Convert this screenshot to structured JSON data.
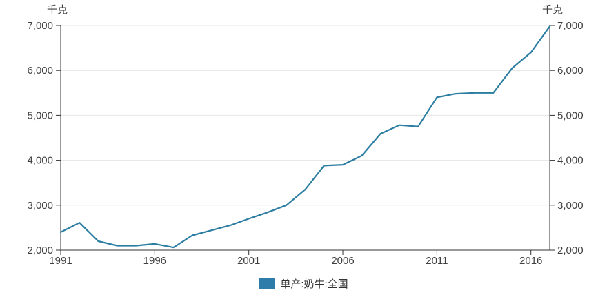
{
  "chart": {
    "unit_left": "千克",
    "unit_right": "千克",
    "legend": {
      "label": "单产:奶牛:全国",
      "swatch_color": "#2e7ca9"
    }
  },
  "chart_data": {
    "type": "line",
    "title": "",
    "xlabel": "",
    "ylabel": "千克",
    "xlim": [
      1991,
      2017
    ],
    "ylim": [
      2000,
      7000
    ],
    "grid": "horizontal",
    "legend_position": "bottom-center",
    "axis_color": "#333333",
    "grid_color": "#e4e4e4",
    "tick_text_color": "#404040",
    "x": [
      1991,
      1992,
      1993,
      1994,
      1995,
      1996,
      1997,
      1998,
      1999,
      2000,
      2001,
      2002,
      2003,
      2004,
      2005,
      2006,
      2007,
      2008,
      2009,
      2010,
      2011,
      2012,
      2013,
      2014,
      2015,
      2016,
      2017
    ],
    "series": [
      {
        "name": "单产:奶牛:全国",
        "color": "#2b7da1",
        "values": [
          2400,
          2610,
          2200,
          2100,
          2100,
          2140,
          2060,
          2330,
          2440,
          2550,
          2700,
          2840,
          3000,
          3350,
          3880,
          3900,
          4100,
          4590,
          4780,
          4750,
          5400,
          5480,
          5500,
          5500,
          6050,
          6400,
          6980
        ]
      }
    ],
    "x_ticks": [
      {
        "v": 1991,
        "label": "1991"
      },
      {
        "v": 1996,
        "label": "1996"
      },
      {
        "v": 2001,
        "label": "2001"
      },
      {
        "v": 2006,
        "label": "2006"
      },
      {
        "v": 2011,
        "label": "2011"
      },
      {
        "v": 2016,
        "label": "2016"
      }
    ],
    "y_ticks": [
      {
        "v": 2000,
        "label": "2,000"
      },
      {
        "v": 3000,
        "label": "3,000"
      },
      {
        "v": 4000,
        "label": "4,000"
      },
      {
        "v": 5000,
        "label": "5,000"
      },
      {
        "v": 6000,
        "label": "6,000"
      },
      {
        "v": 7000,
        "label": "7,000"
      }
    ]
  }
}
